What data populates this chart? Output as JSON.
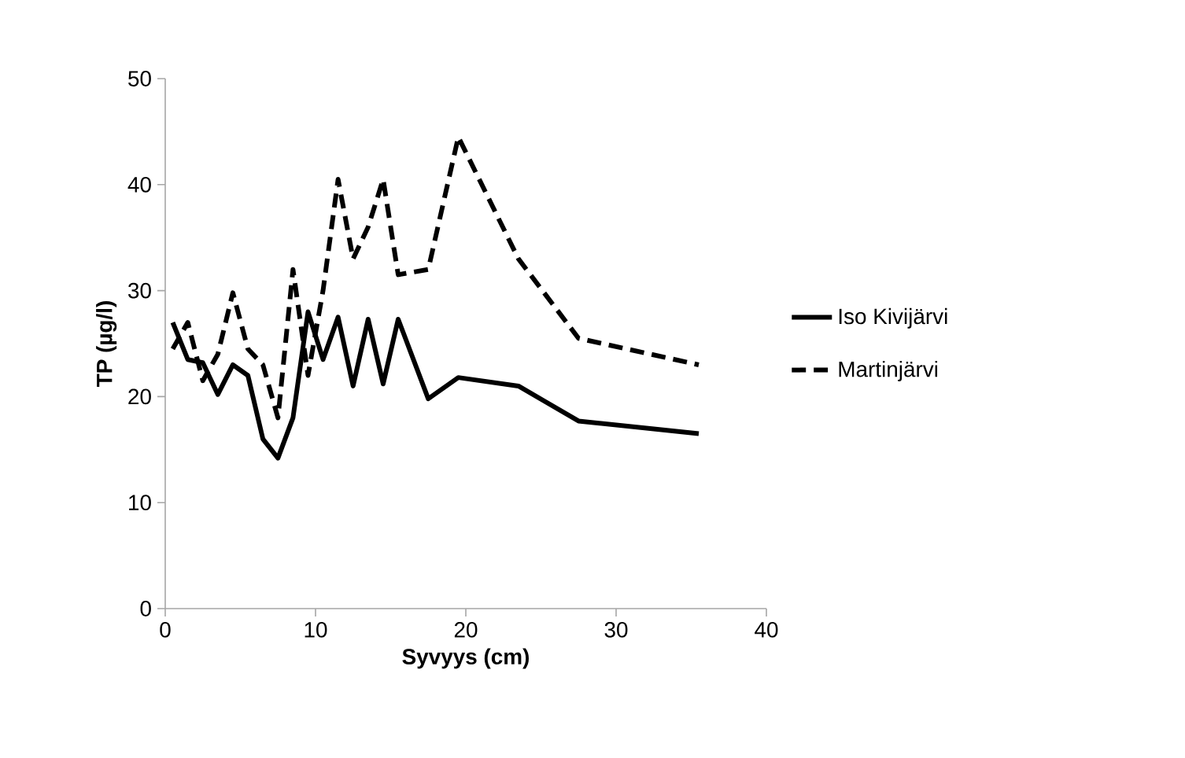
{
  "chart_data": {
    "type": "line",
    "xlabel": "Syvyys (cm)",
    "ylabel": "TP (µg/l)",
    "xlim": [
      0,
      40
    ],
    "xticks": [
      0,
      10,
      20,
      30,
      40
    ],
    "ylim": [
      0,
      50
    ],
    "yticks": [
      0,
      10,
      20,
      30,
      40,
      50
    ],
    "grid": false,
    "legend": "right",
    "marker": "none",
    "x": [
      0.5,
      1.5,
      2.5,
      3.5,
      4.5,
      5.5,
      6.5,
      7.5,
      8.5,
      9.5,
      10.5,
      11.5,
      12.5,
      13.5,
      14.5,
      15.5,
      17.5,
      19.5,
      23.5,
      27.5,
      35.5
    ],
    "series": [
      {
        "name": "Iso Kivijärvi",
        "color": "#000000",
        "line_style": "solid",
        "values": [
          27,
          23.5,
          23.2,
          20.2,
          23,
          22,
          16,
          14.2,
          18,
          28,
          23.5,
          27.5,
          21,
          27.3,
          21.2,
          27.3,
          19.8,
          21.8,
          21,
          17.7,
          16.5
        ]
      },
      {
        "name": "Martinjärvi",
        "color": "#000000",
        "line_style": "dashed",
        "values": [
          24.5,
          27,
          21.5,
          24,
          29.8,
          24.5,
          23,
          18,
          32,
          22,
          30,
          40.5,
          33,
          36,
          40.5,
          31.5,
          32,
          44.5,
          33,
          25.5,
          23
        ]
      }
    ]
  }
}
